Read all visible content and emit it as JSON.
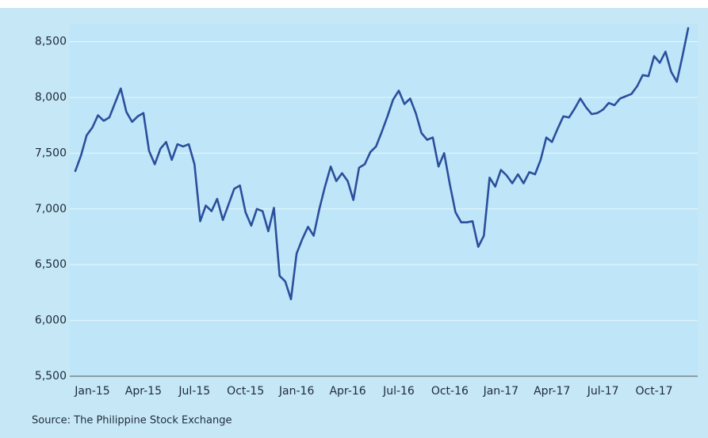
{
  "chart_data": {
    "type": "line",
    "source": "Source: The Philippine Stock Exchange",
    "categories": [
      null,
      null,
      null,
      "Jan-15",
      null,
      null,
      null,
      null,
      null,
      null,
      null,
      null,
      "Apr-15",
      null,
      null,
      null,
      null,
      null,
      null,
      null,
      null,
      "Jul-15",
      null,
      null,
      null,
      null,
      null,
      null,
      null,
      null,
      "Oct-15",
      null,
      null,
      null,
      null,
      null,
      null,
      null,
      null,
      "Jan-16",
      null,
      null,
      null,
      null,
      null,
      null,
      null,
      null,
      "Apr-16",
      null,
      null,
      null,
      null,
      null,
      null,
      null,
      null,
      "Jul-16",
      null,
      null,
      null,
      null,
      null,
      null,
      null,
      null,
      "Oct-16",
      null,
      null,
      null,
      null,
      null,
      null,
      null,
      null,
      "Jan-17",
      null,
      null,
      null,
      null,
      null,
      null,
      null,
      null,
      "Apr-17",
      null,
      null,
      null,
      null,
      null,
      null,
      null,
      null,
      "Jul-17",
      null,
      null,
      null,
      null,
      null,
      null,
      null,
      null,
      "Oct-17",
      null,
      null,
      null,
      null,
      null,
      null
    ],
    "values": [
      7340,
      7480,
      7660,
      7730,
      7840,
      7790,
      7820,
      7950,
      8080,
      7870,
      7780,
      7830,
      7860,
      7520,
      7400,
      7540,
      7600,
      7440,
      7580,
      7560,
      7580,
      7400,
      6890,
      7030,
      6980,
      7090,
      6900,
      7040,
      7180,
      7210,
      6970,
      6850,
      7000,
      6980,
      6800,
      7010,
      6400,
      6350,
      6190,
      6600,
      6730,
      6840,
      6760,
      7000,
      7200,
      7380,
      7250,
      7320,
      7250,
      7080,
      7370,
      7400,
      7510,
      7560,
      7690,
      7830,
      7980,
      8060,
      7940,
      7990,
      7860,
      7680,
      7620,
      7640,
      7380,
      7500,
      7220,
      6970,
      6880,
      6880,
      6890,
      6660,
      6760,
      7280,
      7200,
      7350,
      7300,
      7230,
      7310,
      7230,
      7330,
      7310,
      7440,
      7640,
      7600,
      7720,
      7830,
      7820,
      7900,
      7990,
      7910,
      7850,
      7860,
      7890,
      7950,
      7930,
      7990,
      8010,
      8030,
      8100,
      8200,
      8190,
      8370,
      8310,
      8410,
      8230,
      8140,
      8370,
      8620
    ],
    "color": "#2b4f9c",
    "ylim": [
      5500,
      8660
    ],
    "yticks": [
      {
        "value": 5500,
        "label": "5,500"
      },
      {
        "value": 6000,
        "label": "6,000"
      },
      {
        "value": 6500,
        "label": "6,500"
      },
      {
        "value": 7000,
        "label": "7,000"
      },
      {
        "value": 7500,
        "label": "7,500"
      },
      {
        "value": 8000,
        "label": "8,000"
      },
      {
        "value": 8500,
        "label": "8,500"
      }
    ],
    "grid": true
  }
}
